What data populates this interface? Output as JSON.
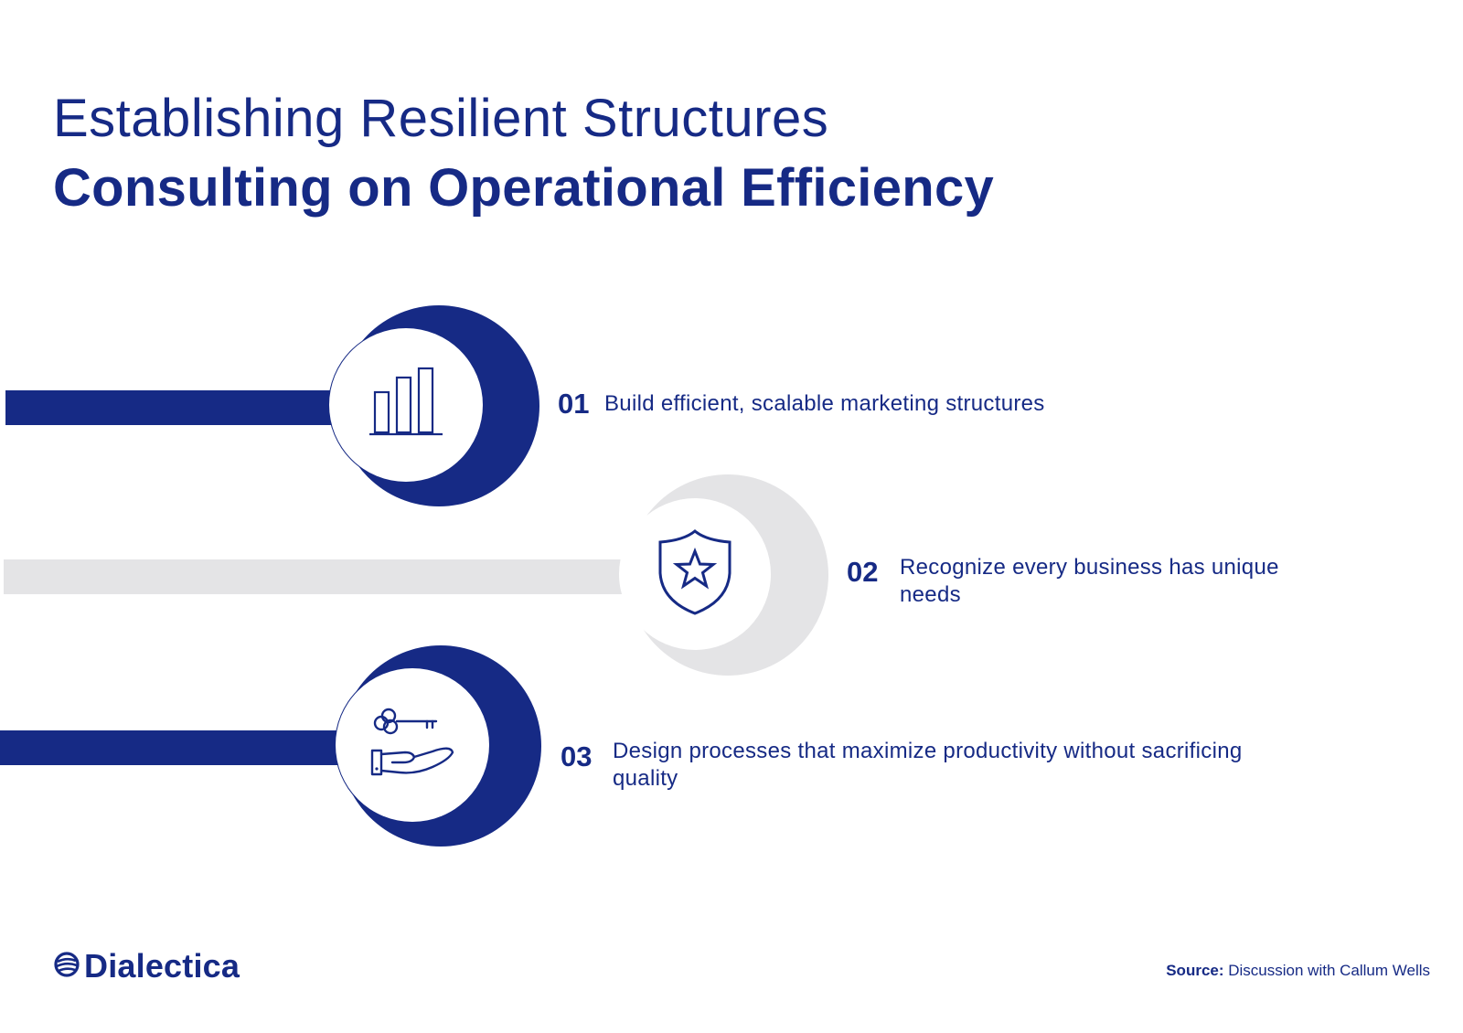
{
  "header": {
    "title": "Establishing Resilient Structures",
    "subtitle": "Consulting on Operational Efficiency"
  },
  "colors": {
    "primary": "#162a85",
    "muted": "#e4e4e6",
    "background": "#ffffff"
  },
  "steps": [
    {
      "number": "01",
      "text": "Build efficient, scalable marketing structures",
      "icon": "bar-chart-icon",
      "style": "primary"
    },
    {
      "number": "02",
      "text": "Recognize every business has unique needs",
      "icon": "shield-star-icon",
      "style": "muted"
    },
    {
      "number": "03",
      "text": "Design processes that maximize productivity without sacrificing quality",
      "icon": "hand-key-icon",
      "style": "primary"
    }
  ],
  "footer": {
    "logo_text": "Dialectica",
    "source_label": "Source:",
    "source_text": "Discussion with Callum Wells"
  }
}
